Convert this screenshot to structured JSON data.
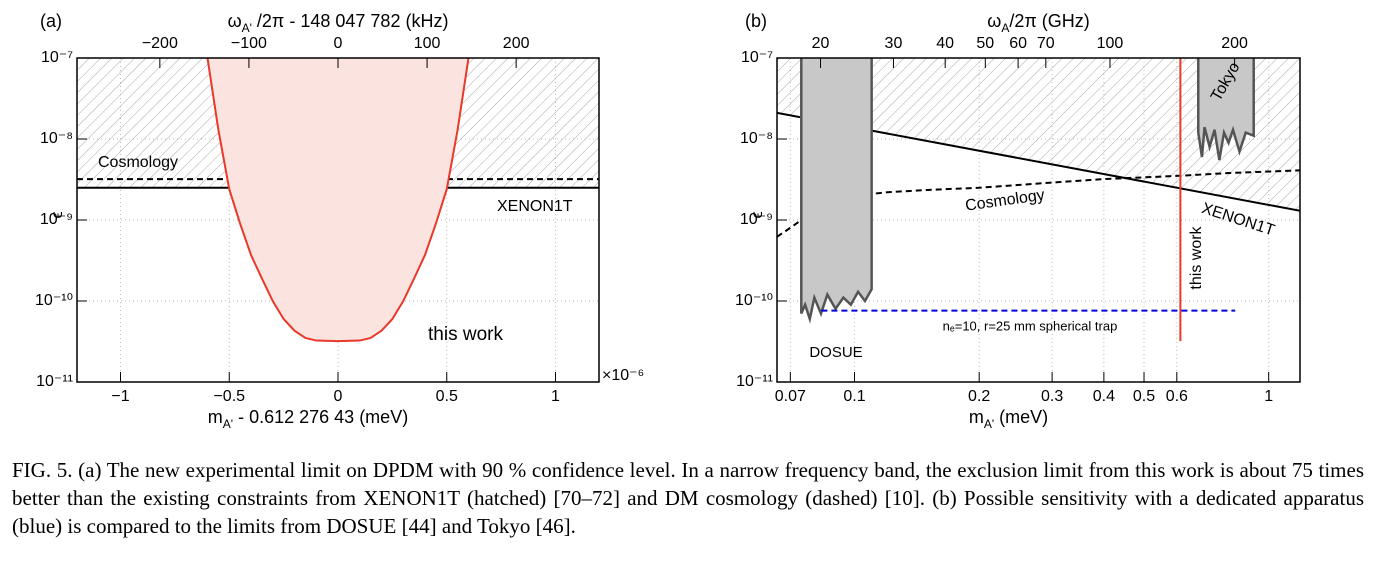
{
  "chart_data": [
    {
      "type": "line",
      "panel_label": "(a)",
      "x_label": [
        "m",
        "A'",
        " - 0.612 276 43  (meV)"
      ],
      "x_multiplier": "×10⁻⁶",
      "x2_label": [
        "ω",
        "A'",
        " /2π - 148 047 782  (kHz)"
      ],
      "y_label": "ϵ",
      "xlim": [
        -1.2,
        1.2
      ],
      "xticks": [
        {
          "value": -1,
          "label": "−1"
        },
        {
          "value": -0.5,
          "label": "−0.5"
        },
        0,
        0.5,
        1
      ],
      "x2lim": [
        -293,
        293
      ],
      "x2ticks": [
        {
          "value": -200,
          "label": "−200"
        },
        {
          "value": -100,
          "label": "−100"
        },
        0,
        100,
        200
      ],
      "ylim": [
        1e-11,
        1e-07
      ],
      "yticks": [
        {
          "value": 1e-11,
          "label": "10⁻¹¹"
        },
        {
          "value": 1e-10,
          "label": "10⁻¹⁰"
        },
        {
          "value": 1e-09,
          "label": "10⁻⁹"
        },
        {
          "value": 1e-08,
          "label": "10⁻⁸"
        },
        {
          "value": 1e-07,
          "label": "10⁻⁷"
        }
      ],
      "log_x": false,
      "log_y": true,
      "grid": true,
      "series": [
        {
          "name": "XENON1T",
          "color": "#000000",
          "fill": "hatch",
          "x": [
            -1.2,
            1.2
          ],
          "values": [
            2.5e-09,
            2.5e-09
          ]
        },
        {
          "name": "Cosmology",
          "color": "#000000",
          "dash": true,
          "x": [
            -1.2,
            1.2
          ],
          "values": [
            3.2e-09,
            3.2e-09
          ]
        },
        {
          "name": "this work",
          "color": "#e8392b",
          "fill": "#fbe3e0",
          "x": [
            -0.6,
            -0.55,
            -0.5,
            -0.45,
            -0.4,
            -0.35,
            -0.3,
            -0.25,
            -0.2,
            -0.15,
            -0.1,
            0,
            0.1,
            0.15,
            0.2,
            0.25,
            0.3,
            0.35,
            0.4,
            0.45,
            0.5,
            0.55,
            0.6
          ],
          "values": [
            1e-07,
            1.3e-08,
            2.4e-09,
            9e-10,
            3.7e-10,
            1.9e-10,
            1e-10,
            6e-11,
            4.3e-11,
            3.5e-11,
            3.25e-11,
            3.2e-11,
            3.25e-11,
            3.5e-11,
            4.3e-11,
            6e-11,
            1e-10,
            1.9e-10,
            3.7e-10,
            9e-10,
            2.4e-09,
            1.3e-08,
            1e-07
          ]
        }
      ]
    },
    {
      "type": "line",
      "panel_label": "(b)",
      "x_label": [
        "m",
        "A'",
        " (meV)"
      ],
      "x2_label": [
        "ω",
        "A",
        "/2π (GHz)"
      ],
      "y_label": "ϵ",
      "xlim": [
        0.065,
        1.19
      ],
      "xticks": [
        0.07,
        0.1,
        0.2,
        0.3,
        0.4,
        0.5,
        0.6,
        1
      ],
      "x2lim": [
        15.7,
        287.7
      ],
      "x2ticks": [
        20,
        30,
        40,
        50,
        60,
        70,
        100,
        200
      ],
      "ylim": [
        1e-11,
        1e-07
      ],
      "yticks": [
        {
          "value": 1e-11,
          "label": "10⁻¹¹"
        },
        {
          "value": 1e-10,
          "label": "10⁻¹⁰"
        },
        {
          "value": 1e-09,
          "label": "10⁻⁹"
        },
        {
          "value": 1e-08,
          "label": "10⁻⁸"
        },
        {
          "value": 1e-07,
          "label": "10⁻⁷"
        }
      ],
      "log_x": true,
      "log_y": true,
      "grid": true,
      "series": [
        {
          "name": "XENON1T",
          "color": "#000000",
          "fill": "hatch",
          "x": [
            0.065,
            1.19
          ],
          "values": [
            2.1e-08,
            1.3e-09
          ]
        },
        {
          "name": "Cosmology",
          "color": "#000000",
          "dash": true,
          "x": [
            0.065,
            0.07,
            0.08,
            0.09,
            0.1,
            0.12,
            0.15,
            0.2,
            0.3,
            0.4,
            0.6,
            0.8,
            1.19
          ],
          "values": [
            6.2e-10,
            8e-10,
            1.3e-09,
            1.7e-09,
            2e-09,
            2.2e-09,
            2.35e-09,
            2.5e-09,
            2.9e-09,
            3.2e-09,
            3.5e-09,
            3.8e-09,
            4.1e-09
          ]
        },
        {
          "name": "DOSUE",
          "color": "#555555",
          "fill": "#c8c8c8",
          "x": [
            0.0744,
            0.0744,
            0.076,
            0.078,
            0.08,
            0.083,
            0.086,
            0.09,
            0.094,
            0.098,
            0.102,
            0.106,
            0.11,
            0.11
          ],
          "values": [
            1e-07,
            7e-11,
            9e-11,
            6e-11,
            1.1e-10,
            7e-11,
            1.2e-10,
            8e-11,
            1.1e-10,
            9e-11,
            1.3e-10,
            1e-10,
            1.4e-10,
            1e-07
          ]
        },
        {
          "name": "Tokyo",
          "color": "#555555",
          "fill": "#c8c8c8",
          "x": [
            0.676,
            0.676,
            0.69,
            0.7,
            0.72,
            0.74,
            0.76,
            0.78,
            0.8,
            0.82,
            0.85,
            0.88,
            0.92,
            0.92
          ],
          "values": [
            1e-07,
            1.2e-08,
            6e-09,
            1.4e-08,
            8e-09,
            1.3e-08,
            5.5e-09,
            1.2e-08,
            9e-09,
            1.3e-08,
            7e-09,
            1.2e-08,
            1.1e-08,
            1e-07
          ]
        },
        {
          "name": "this work",
          "color": "#e8392b",
          "x": [
            0.612,
            0.612
          ],
          "values": [
            3.2e-11,
            1e-07
          ]
        },
        {
          "name": "nₑ=10, r=25 mm spherical trap",
          "color": "#0000dd",
          "dash": true,
          "x": [
            0.0832,
            0.83
          ],
          "values": [
            7.6e-11,
            7.6e-11
          ]
        }
      ]
    }
  ],
  "caption": "FIG. 5. (a) The new experimental limit on DPDM with 90 % confidence level. In a narrow frequency band, the exclusion limit from this work is about 75 times better than the existing constraints from XENON1T (hatched) [70–72] and DM cosmology (dashed) [10]. (b) Possible sensitivity with a dedicated apparatus (blue) is compared to the limits from DOSUE [44] and Tokyo [46]."
}
